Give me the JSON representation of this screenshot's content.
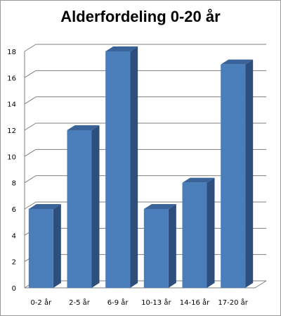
{
  "chart_data": {
    "type": "bar",
    "title": "Alderfordeling 0-20 år",
    "categories": [
      "0-2 år",
      "2-5 år",
      "6-9 år",
      "10-13 år",
      "14-16 år",
      "17-20 år"
    ],
    "values": [
      6,
      12,
      18,
      6,
      8,
      17
    ],
    "ylim": [
      0,
      18
    ],
    "yticks": [
      0,
      2,
      4,
      6,
      8,
      10,
      12,
      14,
      16,
      18
    ],
    "grid": true,
    "legend": "none",
    "bar_color": "#4a7ebb"
  }
}
